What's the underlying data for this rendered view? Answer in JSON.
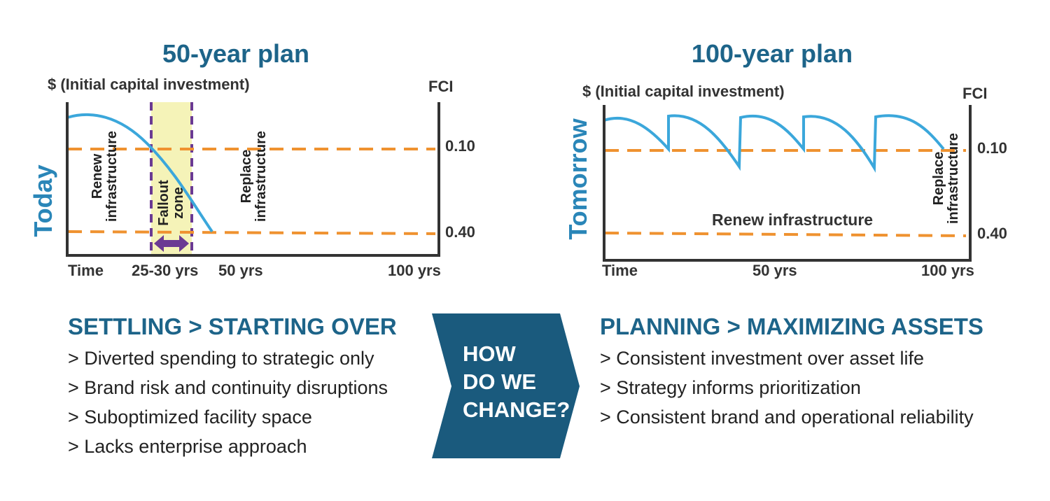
{
  "left": {
    "title": "50-year plan",
    "y_label": "$ (Initial capital investment)",
    "fci_label": "FCI",
    "side_label": "Today",
    "fci_ticks": [
      "0.10",
      "0.40"
    ],
    "x_labels": [
      "Time",
      "25-30 yrs",
      "50 yrs",
      "100 yrs"
    ],
    "annotations": [
      "Renew infrastructure",
      "Fallout zone",
      "Replace infrastructure"
    ]
  },
  "right": {
    "title": "100-year plan",
    "y_label": "$ (Initial capital investment)",
    "fci_label": "FCI",
    "side_label": "Tomorrow",
    "fci_ticks": [
      "0.10",
      "0.40"
    ],
    "x_labels": [
      "Time",
      "50 yrs",
      "100 yrs"
    ],
    "annotations": [
      "Renew infrastructure",
      "Replace infrastructure"
    ]
  },
  "bottom_left": {
    "heading": "SETTLING > STARTING OVER",
    "bullets": [
      "> Diverted spending to strategic only",
      "> Brand risk and continuity disruptions",
      "> Suboptimized facility space",
      "> Lacks enterprise approach"
    ]
  },
  "arrow": {
    "lines": [
      "HOW",
      "DO WE",
      "CHANGE?"
    ]
  },
  "bottom_right": {
    "heading": "PLANNING > MAXIMIZING ASSETS",
    "bullets": [
      "> Consistent investment over asset life",
      "> Strategy informs prioritization",
      "> Consistent brand and operational reliability"
    ]
  }
}
